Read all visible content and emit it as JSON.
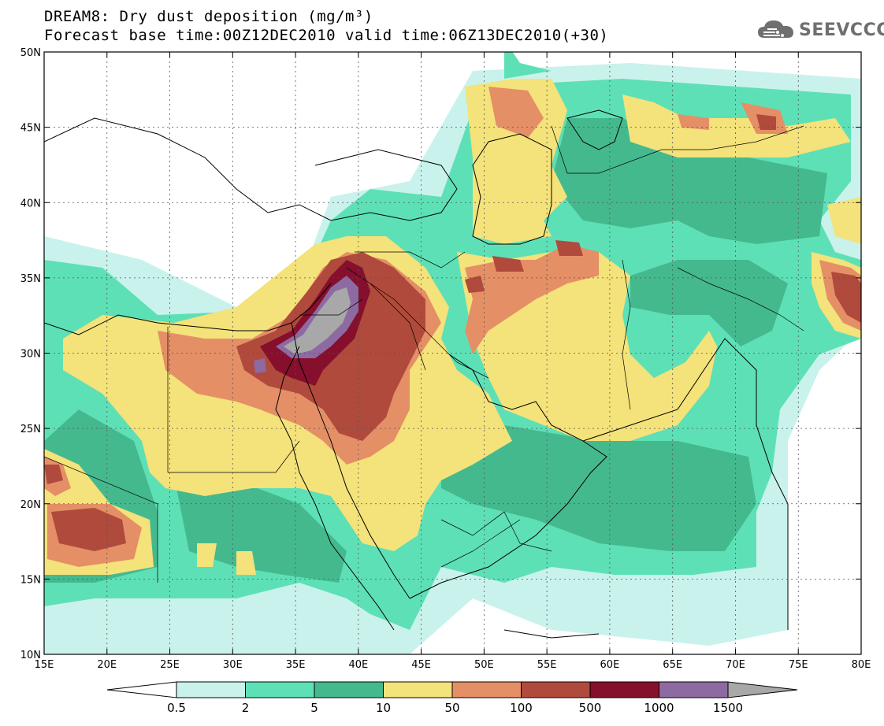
{
  "header": {
    "title_line1": "DREAM8: Dry dust deposition (mg/m³)",
    "title_line2": "Forecast base time:00Z12DEC2010 valid time:06Z13DEC2010(+30)"
  },
  "logo": {
    "text": "SEEVCCC",
    "icon": "cloud-icon"
  },
  "map": {
    "lon_range": [
      15,
      80
    ],
    "lat_range": [
      10,
      50
    ],
    "lon_ticks": [
      15,
      20,
      25,
      30,
      35,
      40,
      45,
      50,
      55,
      60,
      65,
      70,
      75,
      80
    ],
    "lon_labels": [
      "15E",
      "20E",
      "25E",
      "30E",
      "35E",
      "40E",
      "45E",
      "50E",
      "55E",
      "60E",
      "65E",
      "70E",
      "75E",
      "80E"
    ],
    "lat_ticks": [
      10,
      15,
      20,
      25,
      30,
      35,
      40,
      45,
      50
    ],
    "lat_labels": [
      "10N",
      "15N",
      "20N",
      "25N",
      "30N",
      "35N",
      "40N",
      "45N",
      "50N"
    ],
    "grid": true,
    "colors": {
      "0.5-2": "#c9f2ec",
      "2-5": "#5ee0b6",
      "5-10": "#45b98e",
      "10-50": "#f4e27a",
      "50-100": "#e58f66",
      "100-500": "#b04a3c",
      "500-1000": "#850f2c",
      "1000-1500": "#8e6aa2",
      ">1500": "#a8a8a8"
    }
  },
  "colorbar": {
    "labels": [
      "0.5",
      "2",
      "5",
      "10",
      "50",
      "100",
      "500",
      "1000",
      "1500"
    ],
    "colors": [
      "#c9f2ec",
      "#5ee0b6",
      "#45b98e",
      "#f4e27a",
      "#e58f66",
      "#b04a3c",
      "#850f2c",
      "#8e6aa2"
    ],
    "min_arrow_color": "#ffffff",
    "max_arrow_color": "#a8a8a8"
  }
}
